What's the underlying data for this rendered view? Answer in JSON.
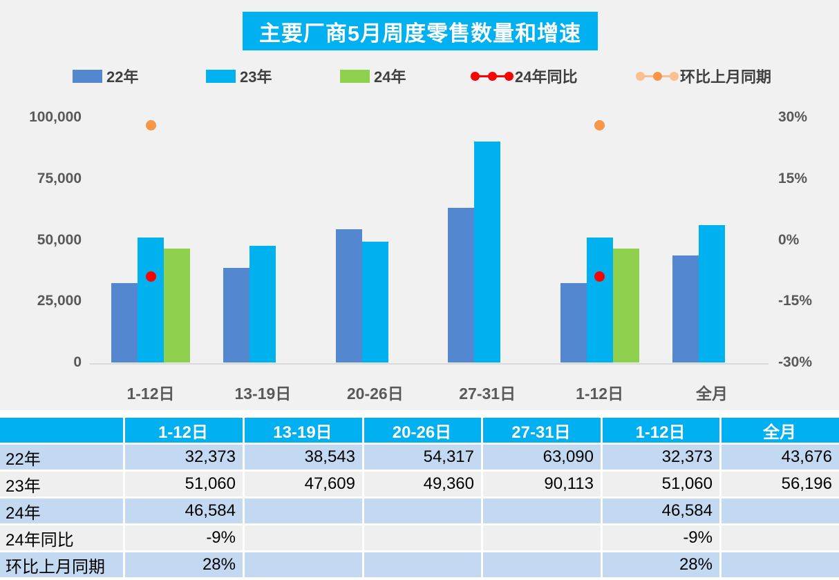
{
  "title": "主要厂商5月周度零售数量和增速",
  "colors": {
    "accent_cyan": "#00B0F0",
    "bar_22": "#5388D1",
    "bar_23": "#00B1F0",
    "bar_24": "#8FD04E",
    "line_yoy": "#FF0000",
    "line_mom": "#F79646",
    "line_mom_light": "#FAC08F",
    "axis_text": "#595959",
    "table_row_blue": "#C3D9F1",
    "table_row_gray": "#F0EFEF"
  },
  "legend": [
    {
      "label": "22年",
      "type": "swatch",
      "color": "#5388D1"
    },
    {
      "label": "23年",
      "type": "swatch",
      "color": "#00B1F0"
    },
    {
      "label": "24年",
      "type": "swatch",
      "color": "#8FD04E"
    },
    {
      "label": "24年同比",
      "type": "marker",
      "line_color": "#FF0000",
      "dot_colors": [
        "#FF0000",
        "#FF0000",
        "#FF0000"
      ]
    },
    {
      "label": "环比上月同期",
      "type": "marker",
      "line_color": "#FBBE8E",
      "dot_colors": [
        "#FAC08F",
        "#F79646",
        "#FAC08F"
      ]
    }
  ],
  "chart_data": {
    "type": "bar",
    "title": "主要厂商5月周度零售数量和增速",
    "categories": [
      "1-12日",
      "13-19日",
      "20-26日",
      "27-31日",
      "1-12日",
      "全月"
    ],
    "series": [
      {
        "name": "22年",
        "kind": "bar",
        "color": "#5388D1",
        "values": [
          32373,
          38543,
          54317,
          63090,
          32373,
          43676
        ]
      },
      {
        "name": "23年",
        "kind": "bar",
        "color": "#00B1F0",
        "values": [
          51060,
          47609,
          49360,
          90113,
          51060,
          56196
        ]
      },
      {
        "name": "24年",
        "kind": "bar",
        "color": "#8FD04E",
        "values": [
          46584,
          null,
          null,
          null,
          46584,
          null
        ]
      },
      {
        "name": "24年同比",
        "kind": "line",
        "axis": "right",
        "color": "#FF0000",
        "values": [
          -9,
          null,
          null,
          null,
          -9,
          null
        ]
      },
      {
        "name": "环比上月同期",
        "kind": "line",
        "axis": "right",
        "color": "#F79646",
        "values": [
          28,
          null,
          null,
          null,
          28,
          null
        ]
      }
    ],
    "left_axis": {
      "min": 0,
      "max": 100000,
      "ticks": [
        {
          "label": "100,000",
          "value": 100000
        },
        {
          "label": "75,000",
          "value": 75000
        },
        {
          "label": "50,000",
          "value": 50000
        },
        {
          "label": "25,000",
          "value": 25000
        },
        {
          "label": "0",
          "value": 0
        }
      ]
    },
    "right_axis": {
      "min": -30,
      "max": 30,
      "ticks": [
        {
          "label": "30%",
          "value": 30
        },
        {
          "label": "15%",
          "value": 15
        },
        {
          "label": "0%",
          "value": 0
        },
        {
          "label": "-15%",
          "value": -15
        },
        {
          "label": "-30%",
          "value": -30
        }
      ]
    },
    "grid": false,
    "legend_position": "top"
  },
  "table": {
    "header": [
      "",
      "1-12日",
      "13-19日",
      "20-26日",
      "27-31日",
      "1-12日",
      "全月"
    ],
    "rows": [
      {
        "label": "22年",
        "values": [
          "32,373",
          "38,543",
          "54,317",
          "63,090",
          "32,373",
          "43,676"
        ],
        "shade": "blue"
      },
      {
        "label": "23年",
        "values": [
          "51,060",
          "47,609",
          "49,360",
          "90,113",
          "51,060",
          "56,196"
        ],
        "shade": "gray"
      },
      {
        "label": "24年",
        "values": [
          "46,584",
          "",
          "",
          "",
          "46,584",
          ""
        ],
        "shade": "blue"
      },
      {
        "label": "24年同比",
        "values": [
          "-9%",
          "",
          "",
          "",
          "-9%",
          ""
        ],
        "shade": "gray"
      },
      {
        "label": "环比上月同期",
        "values": [
          "28%",
          "",
          "",
          "",
          "28%",
          ""
        ],
        "shade": "blue"
      }
    ]
  }
}
